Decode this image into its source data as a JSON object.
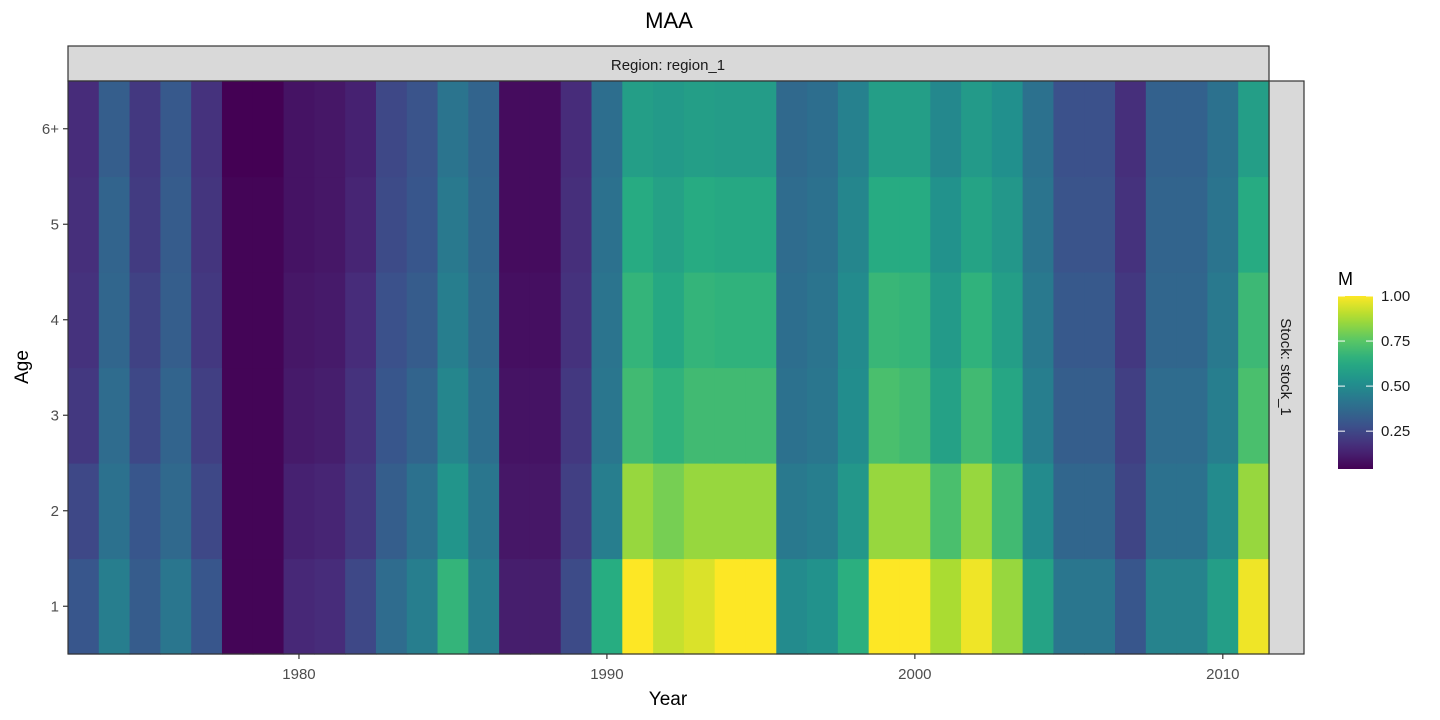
{
  "chart_data": {
    "type": "heatmap",
    "title": "MAA",
    "xlabel": "Year",
    "ylabel": "Age",
    "facet_top": "Region: region_1",
    "facet_right": "Stock: stock_1",
    "x": [
      1973,
      1974,
      1975,
      1976,
      1977,
      1978,
      1979,
      1980,
      1981,
      1982,
      1983,
      1984,
      1985,
      1986,
      1987,
      1988,
      1989,
      1990,
      1991,
      1992,
      1993,
      1994,
      1995,
      1996,
      1997,
      1998,
      1999,
      2000,
      2001,
      2002,
      2003,
      2004,
      2005,
      2006,
      2007,
      2008,
      2009,
      2010,
      2011
    ],
    "x_ticks": [
      1980,
      1990,
      2000,
      2010
    ],
    "x_tick_labels": [
      "1980",
      "1990",
      "2000",
      "2010"
    ],
    "xlim": [
      1972.5,
      2011.5
    ],
    "y_categories": [
      "1",
      "2",
      "3",
      "4",
      "5",
      "6+"
    ],
    "z": [
      [
        0.3,
        0.45,
        0.32,
        0.42,
        0.3,
        0.05,
        0.05,
        0.15,
        0.16,
        0.25,
        0.38,
        0.45,
        0.67,
        0.45,
        0.12,
        0.12,
        0.26,
        0.64,
        1.0,
        0.92,
        0.95,
        1.0,
        1.0,
        0.5,
        0.53,
        0.65,
        1.0,
        1.0,
        0.88,
        0.98,
        0.85,
        0.6,
        0.42,
        0.42,
        0.3,
        0.47,
        0.47,
        0.58,
        0.98
      ],
      [
        0.25,
        0.4,
        0.3,
        0.37,
        0.25,
        0.05,
        0.05,
        0.13,
        0.14,
        0.2,
        0.33,
        0.4,
        0.54,
        0.42,
        0.1,
        0.1,
        0.22,
        0.45,
        0.85,
        0.8,
        0.85,
        0.85,
        0.85,
        0.43,
        0.45,
        0.55,
        0.85,
        0.85,
        0.72,
        0.85,
        0.7,
        0.5,
        0.36,
        0.36,
        0.24,
        0.4,
        0.4,
        0.5,
        0.85
      ],
      [
        0.2,
        0.38,
        0.25,
        0.35,
        0.22,
        0.05,
        0.05,
        0.11,
        0.12,
        0.18,
        0.3,
        0.35,
        0.48,
        0.39,
        0.09,
        0.09,
        0.2,
        0.42,
        0.7,
        0.66,
        0.7,
        0.7,
        0.7,
        0.4,
        0.42,
        0.51,
        0.72,
        0.7,
        0.59,
        0.7,
        0.61,
        0.45,
        0.33,
        0.33,
        0.22,
        0.38,
        0.38,
        0.45,
        0.72
      ],
      [
        0.18,
        0.36,
        0.23,
        0.33,
        0.2,
        0.05,
        0.05,
        0.1,
        0.11,
        0.16,
        0.28,
        0.32,
        0.45,
        0.37,
        0.08,
        0.08,
        0.18,
        0.41,
        0.67,
        0.62,
        0.67,
        0.66,
        0.66,
        0.39,
        0.41,
        0.5,
        0.68,
        0.67,
        0.56,
        0.66,
        0.58,
        0.43,
        0.31,
        0.31,
        0.2,
        0.36,
        0.36,
        0.43,
        0.69
      ],
      [
        0.17,
        0.35,
        0.21,
        0.32,
        0.19,
        0.05,
        0.05,
        0.09,
        0.1,
        0.14,
        0.26,
        0.3,
        0.43,
        0.36,
        0.07,
        0.07,
        0.17,
        0.4,
        0.63,
        0.59,
        0.63,
        0.62,
        0.62,
        0.38,
        0.4,
        0.48,
        0.63,
        0.63,
        0.53,
        0.6,
        0.55,
        0.41,
        0.29,
        0.29,
        0.18,
        0.35,
        0.35,
        0.41,
        0.63
      ],
      [
        0.16,
        0.33,
        0.2,
        0.31,
        0.18,
        0.04,
        0.04,
        0.09,
        0.1,
        0.13,
        0.25,
        0.29,
        0.41,
        0.35,
        0.07,
        0.07,
        0.16,
        0.39,
        0.58,
        0.56,
        0.58,
        0.57,
        0.57,
        0.37,
        0.39,
        0.46,
        0.58,
        0.58,
        0.49,
        0.56,
        0.52,
        0.4,
        0.28,
        0.28,
        0.17,
        0.34,
        0.34,
        0.4,
        0.58
      ]
    ],
    "legend": {
      "title": "M",
      "placement": "right",
      "ticks": [
        0.25,
        0.5,
        0.75,
        1.0
      ],
      "tick_labels": [
        "0.25",
        "0.50",
        "0.75",
        "1.00"
      ],
      "range": [
        0.04,
        1.0
      ]
    },
    "colormap": "viridis",
    "grid": false
  }
}
